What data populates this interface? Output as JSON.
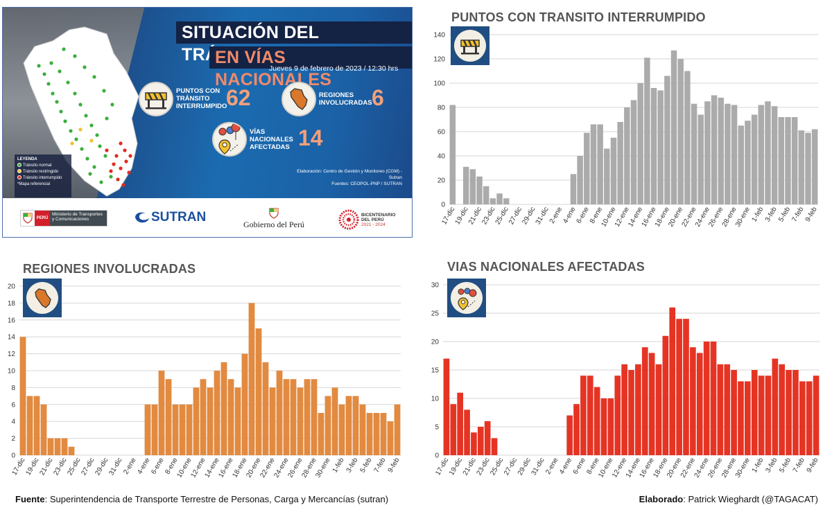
{
  "infographic": {
    "title_line1": "SITUACIÓN DEL TRÁNSITO",
    "title_line2": "EN VÍAS NACIONALES",
    "date": "Jueves 9 de febrero de 2023 / 12:30 hrs",
    "stats": [
      {
        "label": "PUNTOS CON TRÁNSITO INTERRUMPIDO",
        "value": "62",
        "icon": "road-barrier-icon"
      },
      {
        "label": "REGIONES INVOLUCRADAS",
        "value": "6",
        "icon": "peru-map-icon"
      },
      {
        "label": "VÍAS NACIONALES AFECTADAS",
        "value": "14",
        "icon": "map-pins-icon"
      }
    ],
    "legend": {
      "title": "LEYENDA",
      "items": [
        {
          "label": "Tránsito normal",
          "color": "#3cae3c"
        },
        {
          "label": "Tránsito restringido",
          "color": "#f2c12e"
        },
        {
          "label": "Tránsito interrumpido",
          "color": "#e02b20"
        }
      ],
      "note": "*Mapa referencial"
    },
    "credits_line1": "Elaboración: Centro de Gestión y Monitoreo (CGM) - Sutran",
    "credits_line2": "Fuentes:  CEOPOL-PNP / SUTRAN",
    "logos": {
      "peru_tag": "PERÚ",
      "ministry": "Ministerio de Transportes y Comunicaciones",
      "sutran": "SUTRAN",
      "gobierno": "Gobierno del Perú",
      "bicentenario": "BICENTENARIO",
      "bicentenario_sub": "DEL PERÚ",
      "bicentenario_years": "2021 - 2024"
    }
  },
  "chart_data": [
    {
      "id": "puntos",
      "type": "bar",
      "title": "PUNTOS CON TRANSITO INTERRUMPIDO",
      "color": "#ababab",
      "icon": "road-barrier-icon",
      "ylim": [
        0,
        140
      ],
      "yticks": [
        0,
        20,
        40,
        60,
        80,
        100,
        120,
        140
      ],
      "grid": true,
      "categories": [
        "17-dic",
        "18-dic",
        "19-dic",
        "20-dic",
        "21-dic",
        "22-dic",
        "23-dic",
        "24-dic",
        "25-dic",
        "26-dic",
        "27-dic",
        "28-dic",
        "29-dic",
        "30-dic",
        "31-dic",
        "1-ene",
        "2-ene",
        "3-ene",
        "4-ene",
        "5-ene",
        "6-ene",
        "7-ene",
        "8-ene",
        "9-ene",
        "10-ene",
        "11-ene",
        "12-ene",
        "13-ene",
        "14-ene",
        "15-ene",
        "16-ene",
        "17-ene",
        "18-ene",
        "19-ene",
        "20-ene",
        "21-ene",
        "22-ene",
        "23-ene",
        "24-ene",
        "25-ene",
        "26-ene",
        "27-ene",
        "28-ene",
        "29-ene",
        "30-ene",
        "31-ene",
        "1-feb",
        "2-feb",
        "3-feb",
        "4-feb",
        "5-feb",
        "6-feb",
        "7-feb",
        "8-feb",
        "9-feb"
      ],
      "tick_labels": [
        "17-dic",
        "19-dic",
        "21-dic",
        "23-dic",
        "25-dic",
        "27-dic",
        "29-dic",
        "31-dic",
        "2-ene",
        "4-ene",
        "6-ene",
        "8-ene",
        "10-ene",
        "12-ene",
        "14-ene",
        "16-ene",
        "18-ene",
        "20-ene",
        "22-ene",
        "24-ene",
        "26-ene",
        "28-ene",
        "30-ene",
        "1-feb",
        "3-feb",
        "5-feb",
        "7-feb",
        "9-feb"
      ],
      "values": [
        82,
        0,
        31,
        29,
        23,
        15,
        5,
        9,
        5,
        0,
        0,
        0,
        0,
        0,
        0,
        0,
        0,
        0,
        25,
        40,
        59,
        66,
        66,
        46,
        55,
        68,
        80,
        86,
        100,
        121,
        96,
        94,
        106,
        127,
        120,
        110,
        83,
        74,
        85,
        90,
        88,
        83,
        82,
        65,
        69,
        74,
        82,
        85,
        81,
        72,
        72,
        72,
        61,
        59,
        62
      ]
    },
    {
      "id": "regiones",
      "type": "bar",
      "title": "REGIONES INVOLUCRADAS",
      "color": "#e28a40",
      "icon": "peru-map-icon",
      "ylim": [
        0,
        20
      ],
      "yticks": [
        0,
        2,
        4,
        6,
        8,
        10,
        12,
        14,
        16,
        18,
        20
      ],
      "grid": true,
      "categories": [
        "17-dic",
        "18-dic",
        "19-dic",
        "20-dic",
        "21-dic",
        "22-dic",
        "23-dic",
        "24-dic",
        "25-dic",
        "26-dic",
        "27-dic",
        "28-dic",
        "29-dic",
        "30-dic",
        "31-dic",
        "1-ene",
        "2-ene",
        "3-ene",
        "4-ene",
        "5-ene",
        "6-ene",
        "7-ene",
        "8-ene",
        "9-ene",
        "10-ene",
        "11-ene",
        "12-ene",
        "13-ene",
        "14-ene",
        "15-ene",
        "16-ene",
        "17-ene",
        "18-ene",
        "19-ene",
        "20-ene",
        "21-ene",
        "22-ene",
        "23-ene",
        "24-ene",
        "25-ene",
        "26-ene",
        "27-ene",
        "28-ene",
        "29-ene",
        "30-ene",
        "31-ene",
        "1-feb",
        "2-feb",
        "3-feb",
        "4-feb",
        "5-feb",
        "6-feb",
        "7-feb",
        "8-feb",
        "9-feb"
      ],
      "tick_labels": [
        "17-dic",
        "19-dic",
        "21-dic",
        "23-dic",
        "25-dic",
        "27-dic",
        "29-dic",
        "31-dic",
        "2-ene",
        "4-ene",
        "6-ene",
        "8-ene",
        "10-ene",
        "12-ene",
        "14-ene",
        "16-ene",
        "18-ene",
        "20-ene",
        "22-ene",
        "24-ene",
        "26-ene",
        "28-ene",
        "30-ene",
        "1-feb",
        "3-feb",
        "5-feb",
        "7-feb",
        "9-feb"
      ],
      "values": [
        14,
        7,
        7,
        6,
        2,
        2,
        2,
        1,
        0,
        0,
        0,
        0,
        0,
        0,
        0,
        0,
        0,
        0,
        6,
        6,
        10,
        9,
        6,
        6,
        6,
        8,
        9,
        8,
        10,
        11,
        9,
        8,
        12,
        18,
        15,
        11,
        8,
        10,
        9,
        9,
        8,
        9,
        9,
        5,
        7,
        8,
        6,
        7,
        7,
        6,
        5,
        5,
        5,
        4,
        6
      ]
    },
    {
      "id": "vias",
      "type": "bar",
      "title": "VIAS NACIONALES AFECTADAS",
      "color": "#e53424",
      "icon": "map-pins-icon",
      "ylim": [
        0,
        30
      ],
      "yticks": [
        0,
        5,
        10,
        15,
        20,
        25,
        30
      ],
      "grid": true,
      "categories": [
        "17-dic",
        "18-dic",
        "19-dic",
        "20-dic",
        "21-dic",
        "22-dic",
        "23-dic",
        "24-dic",
        "25-dic",
        "26-dic",
        "27-dic",
        "28-dic",
        "29-dic",
        "30-dic",
        "31-dic",
        "1-ene",
        "2-ene",
        "3-ene",
        "4-ene",
        "5-ene",
        "6-ene",
        "7-ene",
        "8-ene",
        "9-ene",
        "10-ene",
        "11-ene",
        "12-ene",
        "13-ene",
        "14-ene",
        "15-ene",
        "16-ene",
        "17-ene",
        "18-ene",
        "19-ene",
        "20-ene",
        "21-ene",
        "22-ene",
        "23-ene",
        "24-ene",
        "25-ene",
        "26-ene",
        "27-ene",
        "28-ene",
        "29-ene",
        "30-ene",
        "31-ene",
        "1-feb",
        "2-feb",
        "3-feb",
        "4-feb",
        "5-feb",
        "6-feb",
        "7-feb",
        "8-feb",
        "9-feb"
      ],
      "tick_labels": [
        "17-dic",
        "19-dic",
        "21-dic",
        "23-dic",
        "25-dic",
        "27-dic",
        "29-dic",
        "31-dic",
        "2-ene",
        "4-ene",
        "6-ene",
        "8-ene",
        "10-ene",
        "12-ene",
        "14-ene",
        "16-ene",
        "18-ene",
        "20-ene",
        "22-ene",
        "24-ene",
        "26-ene",
        "28-ene",
        "30-ene",
        "1-feb",
        "3-feb",
        "5-feb",
        "7-feb",
        "9-feb"
      ],
      "values": [
        17,
        9,
        11,
        8,
        4,
        5,
        6,
        3,
        0,
        0,
        0,
        0,
        0,
        0,
        0,
        0,
        0,
        0,
        7,
        9,
        14,
        14,
        12,
        10,
        10,
        14,
        16,
        15,
        16,
        19,
        18,
        16,
        21,
        26,
        24,
        24,
        19,
        18,
        20,
        20,
        16,
        16,
        15,
        13,
        13,
        15,
        14,
        14,
        17,
        16,
        15,
        15,
        13,
        13,
        14
      ]
    }
  ],
  "footer": {
    "source_label": "Fuente",
    "source_text": ": Superintendencia de Transporte Terrestre de Personas, Carga y Mercancías (sutran)",
    "made_label": "Elaborado",
    "made_text": ": Patrick Wieghardt (@TAGACAT)"
  }
}
